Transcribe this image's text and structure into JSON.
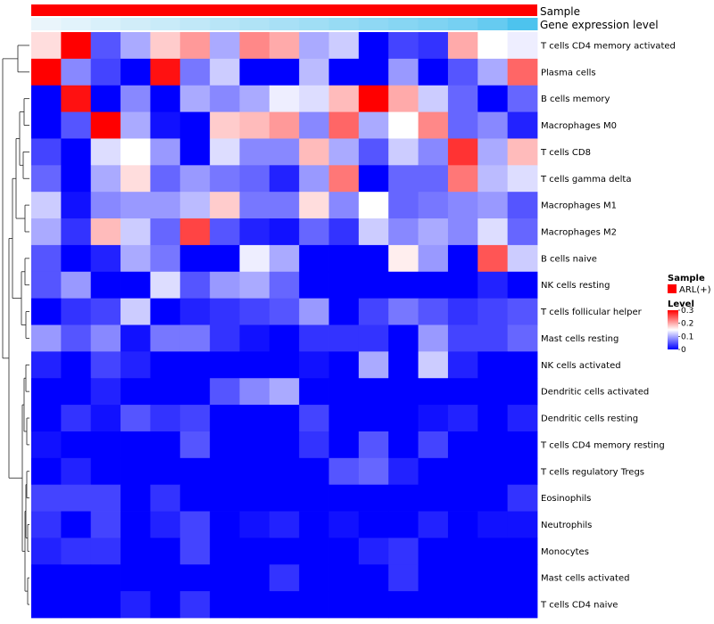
{
  "chart_data": {
    "type": "heatmap",
    "annotations": {
      "top_bar_label": "Sample",
      "expression_bar_label": "Gene expression level"
    },
    "legend": {
      "sample_title": "Sample",
      "sample_entry": "ARL(+)",
      "sample_color": "#ff0000",
      "level_title": "Level",
      "level_ticks": [
        "0.3",
        "0.2",
        "0.1",
        "0"
      ],
      "level_range": [
        0,
        0.3
      ]
    },
    "colors": {
      "low": "#0000ff",
      "mid": "#ffffff",
      "high": "#ff0000",
      "annot_light": "#f2f8fc",
      "annot_dark": "#4dc3ee"
    },
    "expression_bar": [
      0.05,
      0.1,
      0.15,
      0.2,
      0.25,
      0.3,
      0.35,
      0.4,
      0.45,
      0.5,
      0.55,
      0.6,
      0.65,
      0.7,
      0.75,
      0.85,
      1.0
    ],
    "rows": [
      "T cells CD4 memory activated",
      "Plasma cells",
      "B cells memory",
      "Macrophages M0",
      "T cells CD8",
      "T cells gamma delta",
      "Macrophages M1",
      "Macrophages M2",
      "B cells naive",
      "NK cells resting",
      "T cells follicular helper",
      "Mast cells resting",
      "NK cells activated",
      "Dendritic cells activated",
      "Dendritic cells resting",
      "T cells CD4 memory resting",
      "T cells regulatory  Tregs",
      "Eosinophils",
      "Neutrophils",
      "Monocytes",
      "Mast cells activated",
      "T cells CD4 naive"
    ],
    "values": [
      [
        0.17,
        0.3,
        0.05,
        0.1,
        0.18,
        0.21,
        0.1,
        0.22,
        0.2,
        0.1,
        0.12,
        0.0,
        0.04,
        0.03,
        0.2,
        0.15,
        0.14
      ],
      [
        0.3,
        0.08,
        0.04,
        0.0,
        0.29,
        0.07,
        0.12,
        0.0,
        0.0,
        0.11,
        0.0,
        0.0,
        0.09,
        0.0,
        0.05,
        0.1,
        0.24
      ],
      [
        0.0,
        0.29,
        0.0,
        0.08,
        0.0,
        0.1,
        0.08,
        0.1,
        0.14,
        0.13,
        0.19,
        0.3,
        0.2,
        0.12,
        0.06,
        0.0,
        0.06
      ],
      [
        0.0,
        0.05,
        0.3,
        0.1,
        0.01,
        0.0,
        0.18,
        0.19,
        0.21,
        0.08,
        0.24,
        0.1,
        0.15,
        0.22,
        0.06,
        0.08,
        0.02
      ],
      [
        0.04,
        0.0,
        0.13,
        0.15,
        0.09,
        0.0,
        0.13,
        0.08,
        0.08,
        0.19,
        0.1,
        0.05,
        0.12,
        0.08,
        0.27,
        0.1,
        0.19
      ],
      [
        0.06,
        0.0,
        0.1,
        0.17,
        0.06,
        0.09,
        0.07,
        0.06,
        0.02,
        0.09,
        0.23,
        0.0,
        0.06,
        0.06,
        0.23,
        0.11,
        0.13
      ],
      [
        0.12,
        0.01,
        0.08,
        0.09,
        0.09,
        0.11,
        0.18,
        0.07,
        0.07,
        0.17,
        0.08,
        0.15,
        0.06,
        0.07,
        0.08,
        0.09,
        0.05
      ],
      [
        0.1,
        0.03,
        0.19,
        0.12,
        0.06,
        0.26,
        0.05,
        0.02,
        0.01,
        0.06,
        0.03,
        0.12,
        0.08,
        0.1,
        0.08,
        0.13,
        0.06
      ],
      [
        0.05,
        0.0,
        0.02,
        0.1,
        0.07,
        0.0,
        0.0,
        0.14,
        0.1,
        0.0,
        0.0,
        0.0,
        0.16,
        0.09,
        0.0,
        0.25,
        0.12
      ],
      [
        0.05,
        0.09,
        0.0,
        0.0,
        0.13,
        0.05,
        0.09,
        0.1,
        0.06,
        0.0,
        0.0,
        0.0,
        0.0,
        0.0,
        0.0,
        0.02,
        0.0
      ],
      [
        0.0,
        0.03,
        0.04,
        0.12,
        0.0,
        0.02,
        0.03,
        0.04,
        0.05,
        0.09,
        0.0,
        0.04,
        0.07,
        0.05,
        0.03,
        0.04,
        0.05
      ],
      [
        0.09,
        0.05,
        0.08,
        0.01,
        0.07,
        0.07,
        0.03,
        0.01,
        0.0,
        0.03,
        0.03,
        0.03,
        0.0,
        0.09,
        0.04,
        0.04,
        0.06
      ],
      [
        0.02,
        0.0,
        0.04,
        0.02,
        0.0,
        0.0,
        0.0,
        0.0,
        0.0,
        0.01,
        0.0,
        0.1,
        0.0,
        0.12,
        0.02,
        0.0,
        0.0
      ],
      [
        0.0,
        0.0,
        0.02,
        0.0,
        0.0,
        0.0,
        0.05,
        0.08,
        0.1,
        0.0,
        0.0,
        0.0,
        0.0,
        0.0,
        0.0,
        0.0,
        0.0
      ],
      [
        0.0,
        0.03,
        0.01,
        0.05,
        0.03,
        0.04,
        0.0,
        0.0,
        0.0,
        0.04,
        0.0,
        0.0,
        0.0,
        0.01,
        0.02,
        0.0,
        0.02
      ],
      [
        0.01,
        0.0,
        0.0,
        0.0,
        0.0,
        0.05,
        0.0,
        0.0,
        0.0,
        0.03,
        0.0,
        0.05,
        0.0,
        0.04,
        0.0,
        0.0,
        0.0
      ],
      [
        0.0,
        0.02,
        0.0,
        0.0,
        0.0,
        0.0,
        0.0,
        0.0,
        0.0,
        0.0,
        0.05,
        0.06,
        0.02,
        0.0,
        0.0,
        0.0,
        0.0
      ],
      [
        0.04,
        0.04,
        0.04,
        0.0,
        0.03,
        0.0,
        0.0,
        0.0,
        0.0,
        0.0,
        0.0,
        0.0,
        0.0,
        0.0,
        0.0,
        0.0,
        0.03
      ],
      [
        0.03,
        0.0,
        0.04,
        0.0,
        0.02,
        0.04,
        0.0,
        0.01,
        0.02,
        0.0,
        0.01,
        0.0,
        0.0,
        0.02,
        0.0,
        0.01,
        0.01
      ],
      [
        0.02,
        0.03,
        0.03,
        0.0,
        0.0,
        0.04,
        0.0,
        0.0,
        0.0,
        0.0,
        0.0,
        0.02,
        0.03,
        0.0,
        0.0,
        0.0,
        0.0
      ],
      [
        0.0,
        0.0,
        0.0,
        0.0,
        0.0,
        0.0,
        0.0,
        0.0,
        0.03,
        0.0,
        0.0,
        0.0,
        0.03,
        0.0,
        0.0,
        0.0,
        0.0
      ],
      [
        0.0,
        0.0,
        0.0,
        0.02,
        0.0,
        0.03,
        0.0,
        0.0,
        0.0,
        0.0,
        0.0,
        0.0,
        0.0,
        0.0,
        0.0,
        0.0,
        0.0
      ]
    ]
  }
}
